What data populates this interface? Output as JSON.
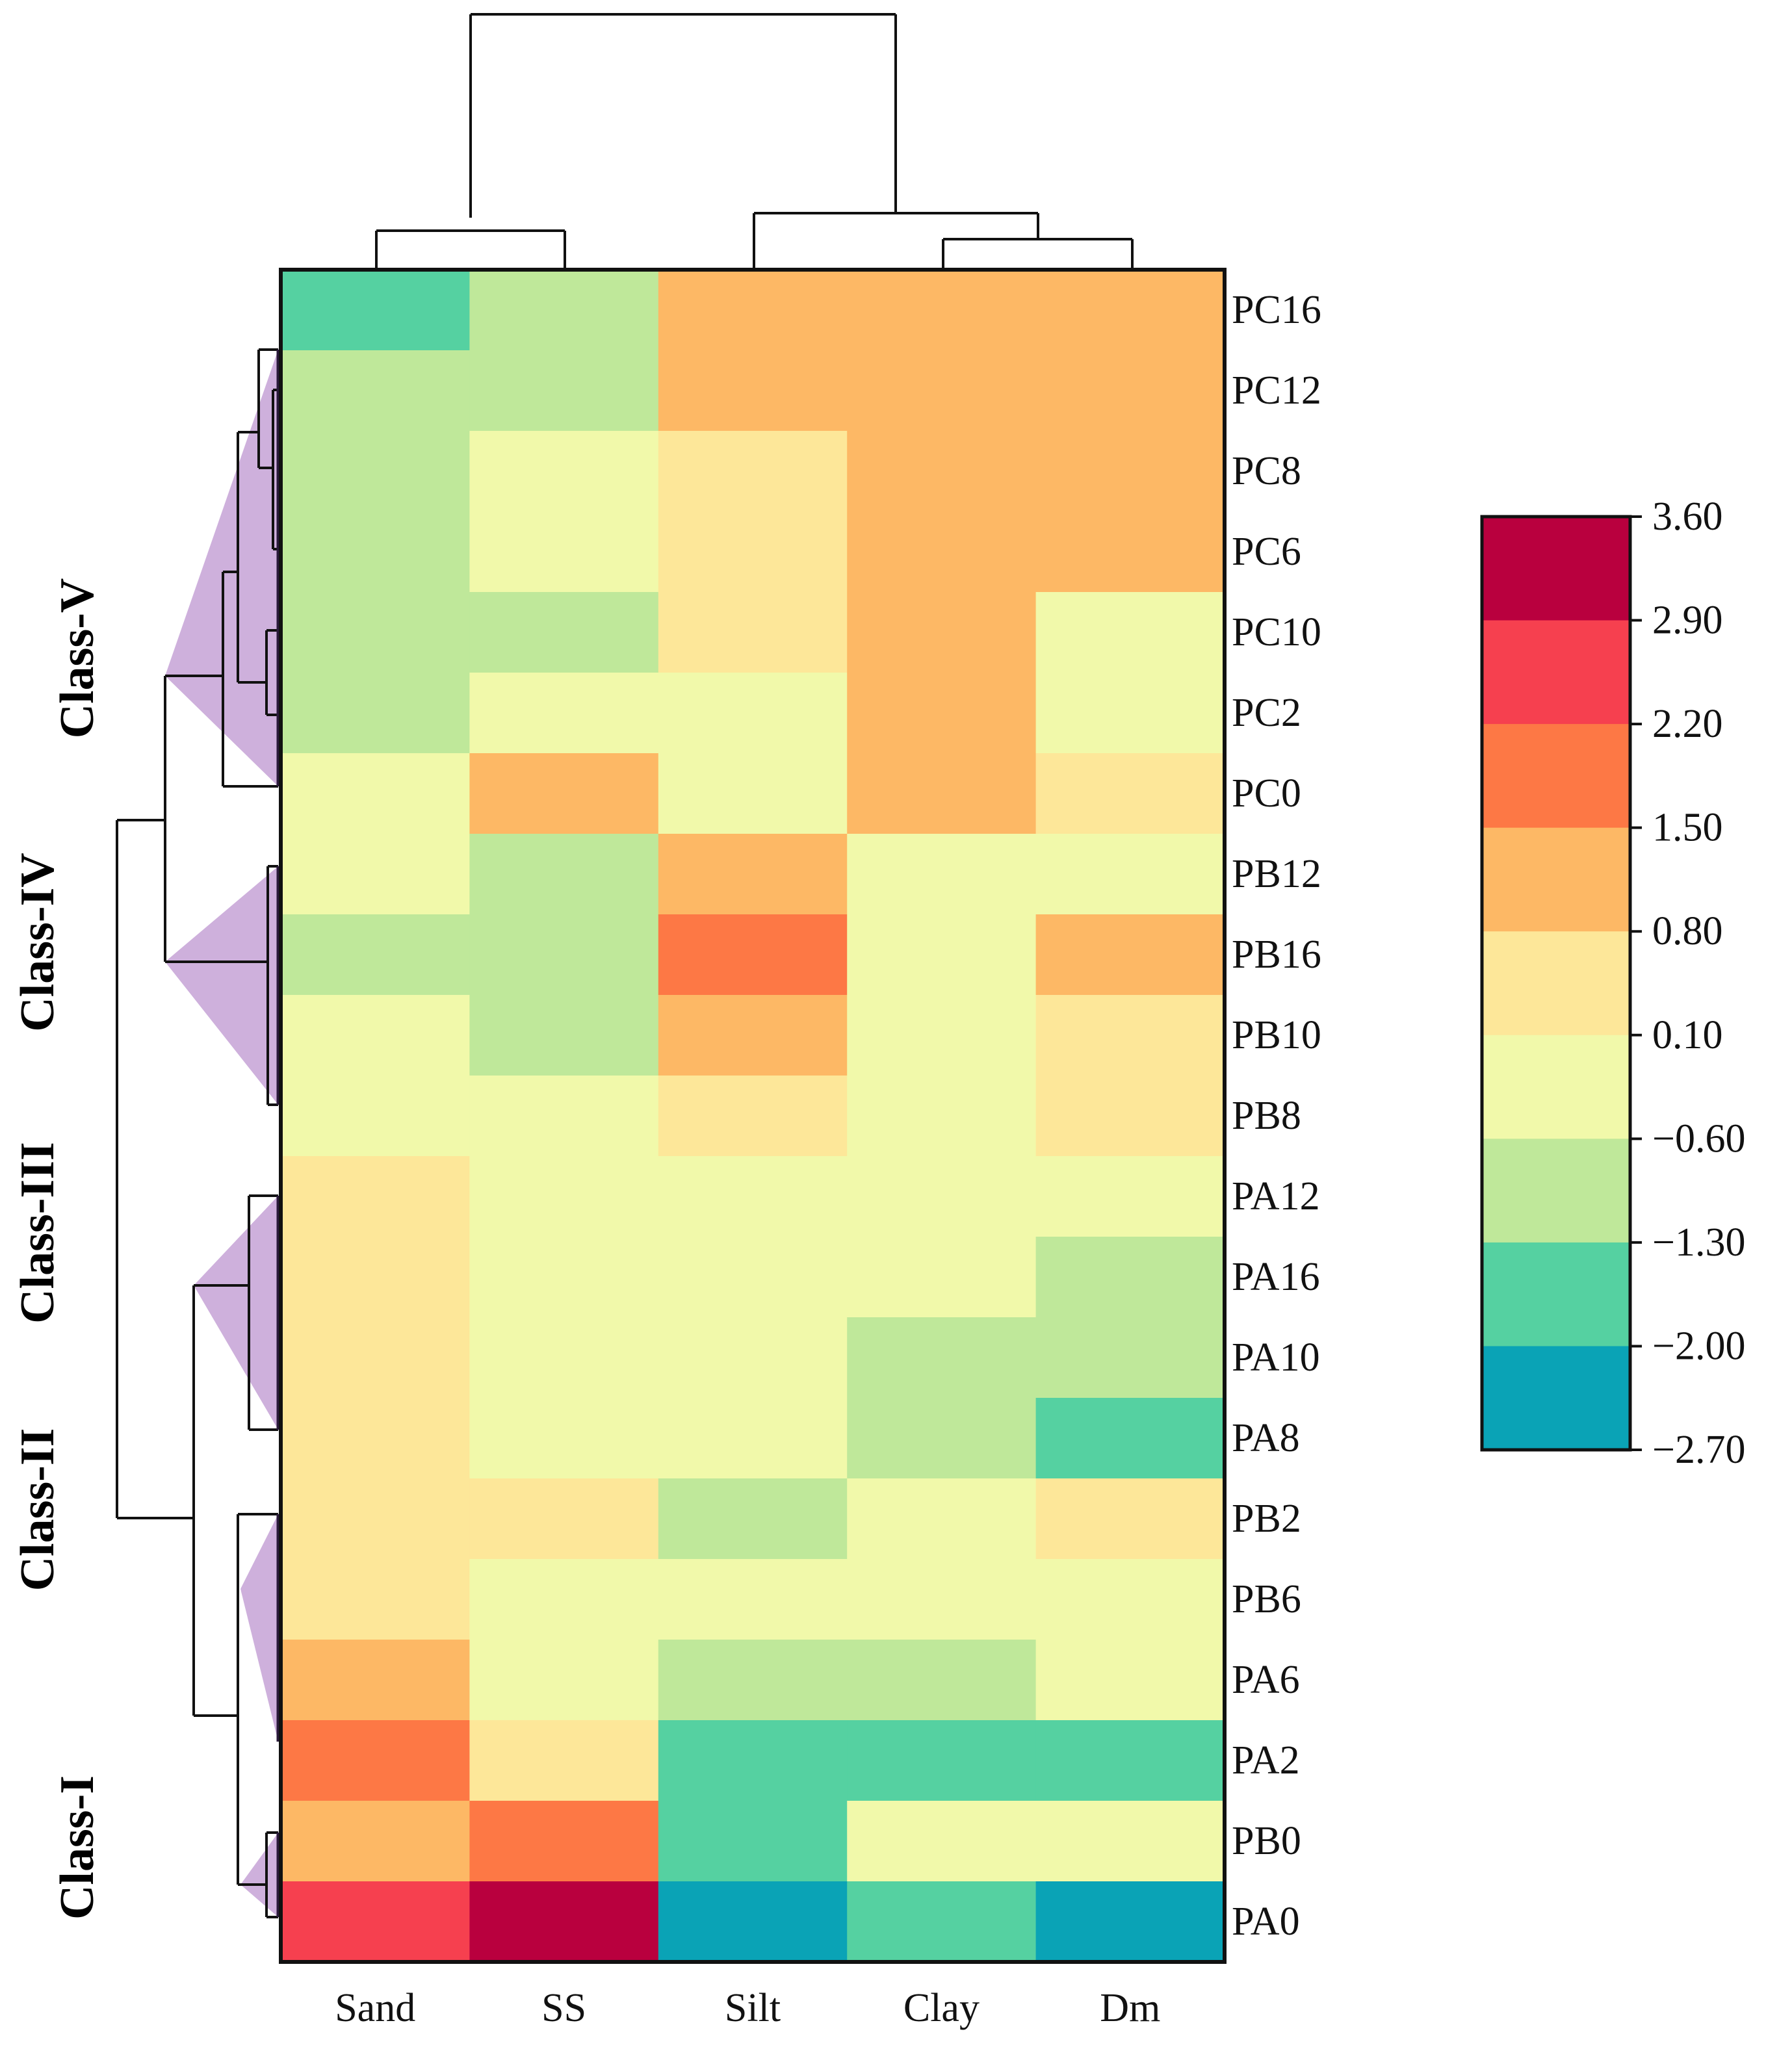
{
  "chart_data": {
    "type": "heatmap",
    "columns": [
      "Sand",
      "SS",
      "Silt",
      "Clay",
      "Dm"
    ],
    "rows": [
      "PC16",
      "PC12",
      "PC8",
      "PC6",
      "PC10",
      "PC2",
      "PC0",
      "PB12",
      "PB16",
      "PB10",
      "PB8",
      "PA12",
      "PA16",
      "PA10",
      "PA8",
      "PB2",
      "PB6",
      "PA6",
      "PA2",
      "PB0",
      "PA0"
    ],
    "values": [
      [
        -1.65,
        -0.95,
        1.15,
        1.15,
        1.15
      ],
      [
        -0.95,
        -0.95,
        1.15,
        1.15,
        1.15
      ],
      [
        -0.95,
        -0.25,
        0.45,
        1.15,
        1.15
      ],
      [
        -0.95,
        -0.25,
        0.45,
        1.15,
        1.15
      ],
      [
        -0.95,
        -0.95,
        0.45,
        1.15,
        -0.25
      ],
      [
        -0.95,
        -0.25,
        -0.25,
        1.15,
        -0.25
      ],
      [
        -0.25,
        1.15,
        -0.25,
        1.15,
        0.45
      ],
      [
        -0.25,
        -0.95,
        1.15,
        -0.25,
        -0.25
      ],
      [
        -0.95,
        -0.95,
        1.85,
        -0.25,
        1.15
      ],
      [
        -0.25,
        -0.95,
        1.15,
        -0.25,
        0.45
      ],
      [
        -0.25,
        -0.25,
        0.45,
        -0.25,
        0.45
      ],
      [
        0.45,
        -0.25,
        -0.25,
        -0.25,
        -0.25
      ],
      [
        0.45,
        -0.25,
        -0.25,
        -0.25,
        -0.95
      ],
      [
        0.45,
        -0.25,
        -0.25,
        -0.95,
        -0.95
      ],
      [
        0.45,
        -0.25,
        -0.25,
        -0.95,
        -1.65
      ],
      [
        0.45,
        0.45,
        -0.95,
        -0.25,
        0.45
      ],
      [
        0.45,
        -0.25,
        -0.25,
        -0.25,
        -0.25
      ],
      [
        1.15,
        -0.25,
        -0.95,
        -0.95,
        -0.25
      ],
      [
        1.85,
        0.45,
        -1.65,
        -1.65,
        -1.65
      ],
      [
        1.15,
        1.85,
        -1.65,
        -0.25,
        -0.25
      ],
      [
        2.55,
        3.25,
        -2.35,
        -1.65,
        -2.35
      ]
    ],
    "colorbar": {
      "ticks": [
        "3.60",
        "2.90",
        "2.20",
        "1.50",
        "0.80",
        "0.10",
        "−0.60",
        "−1.30",
        "−2.00",
        "−2.70"
      ],
      "range": [
        -2.7,
        3.6
      ],
      "bins": [
        {
          "min": -2.7,
          "max": -2.0,
          "color": "#0aa3b6"
        },
        {
          "min": -2.0,
          "max": -1.3,
          "color": "#55d1a1"
        },
        {
          "min": -1.3,
          "max": -0.6,
          "color": "#bfe89a"
        },
        {
          "min": -0.6,
          "max": 0.1,
          "color": "#f1f9aa"
        },
        {
          "min": 0.1,
          "max": 0.8,
          "color": "#fde799"
        },
        {
          "min": 0.8,
          "max": 1.5,
          "color": "#fdb865"
        },
        {
          "min": 1.5,
          "max": 2.2,
          "color": "#fd7845"
        },
        {
          "min": 2.2,
          "max": 2.9,
          "color": "#f6404f"
        },
        {
          "min": 2.9,
          "max": 3.6,
          "color": "#b9003e"
        }
      ]
    },
    "row_dendrogram": true,
    "column_dendrogram": true,
    "clusters": [
      {
        "label": "Class-I",
        "rows": [
          "PB0",
          "PA0"
        ]
      },
      {
        "label": "Class-II",
        "rows": [
          "PB2",
          "PB6",
          "PA6",
          "PA2"
        ]
      },
      {
        "label": "Class-III",
        "rows": [
          "PA12",
          "PA16",
          "PA10",
          "PA8"
        ]
      },
      {
        "label": "Class-IV",
        "rows": [
          "PB12",
          "PB16",
          "PB10",
          "PB8"
        ]
      },
      {
        "label": "Class-V",
        "rows": [
          "PC12",
          "PC8",
          "PC6",
          "PC10",
          "PC2",
          "PC0"
        ]
      }
    ],
    "cluster_color": "#c5a2d6"
  }
}
